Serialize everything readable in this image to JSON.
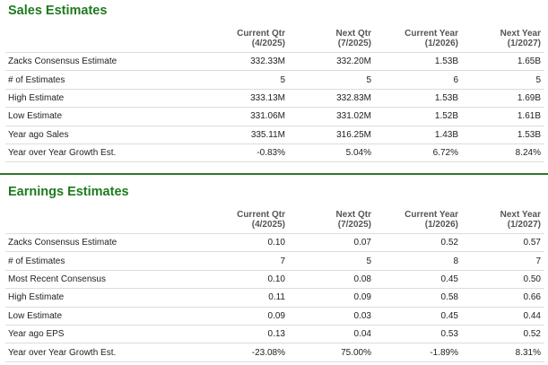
{
  "sales": {
    "title": "Sales Estimates",
    "columns": [
      {
        "line1": "Current Qtr",
        "line2": "(4/2025)"
      },
      {
        "line1": "Next Qtr",
        "line2": "(7/2025)"
      },
      {
        "line1": "Current Year",
        "line2": "(1/2026)"
      },
      {
        "line1": "Next Year",
        "line2": "(1/2027)"
      }
    ],
    "rows": [
      {
        "label": "Zacks Consensus Estimate",
        "values": [
          "332.33M",
          "332.20M",
          "1.53B",
          "1.65B"
        ]
      },
      {
        "label": "# of Estimates",
        "values": [
          "5",
          "5",
          "6",
          "5"
        ]
      },
      {
        "label": "High Estimate",
        "values": [
          "333.13M",
          "332.83M",
          "1.53B",
          "1.69B"
        ]
      },
      {
        "label": "Low Estimate",
        "values": [
          "331.06M",
          "331.02M",
          "1.52B",
          "1.61B"
        ]
      },
      {
        "label": "Year ago Sales",
        "values": [
          "335.11M",
          "316.25M",
          "1.43B",
          "1.53B"
        ]
      },
      {
        "label": "Year over Year Growth Est.",
        "values": [
          "-0.83%",
          "5.04%",
          "6.72%",
          "8.24%"
        ]
      }
    ]
  },
  "earnings": {
    "title": "Earnings Estimates",
    "columns": [
      {
        "line1": "Current Qtr",
        "line2": "(4/2025)"
      },
      {
        "line1": "Next Qtr",
        "line2": "(7/2025)"
      },
      {
        "line1": "Current Year",
        "line2": "(1/2026)"
      },
      {
        "line1": "Next Year",
        "line2": "(1/2027)"
      }
    ],
    "rows": [
      {
        "label": "Zacks Consensus Estimate",
        "values": [
          "0.10",
          "0.07",
          "0.52",
          "0.57"
        ]
      },
      {
        "label": "# of Estimates",
        "values": [
          "7",
          "5",
          "8",
          "7"
        ]
      },
      {
        "label": "Most Recent Consensus",
        "values": [
          "0.10",
          "0.08",
          "0.45",
          "0.50"
        ]
      },
      {
        "label": "High Estimate",
        "values": [
          "0.11",
          "0.09",
          "0.58",
          "0.66"
        ]
      },
      {
        "label": "Low Estimate",
        "values": [
          "0.09",
          "0.03",
          "0.45",
          "0.44"
        ]
      },
      {
        "label": "Year ago EPS",
        "values": [
          "0.13",
          "0.04",
          "0.53",
          "0.52"
        ]
      },
      {
        "label": "Year over Year Growth Est.",
        "values": [
          "-23.08%",
          "75.00%",
          "-1.89%",
          "8.31%"
        ]
      }
    ]
  },
  "colors": {
    "title_green": "#1f7a1f",
    "divider_green": "#2b7a2b",
    "row_border": "#dcdcdc"
  }
}
